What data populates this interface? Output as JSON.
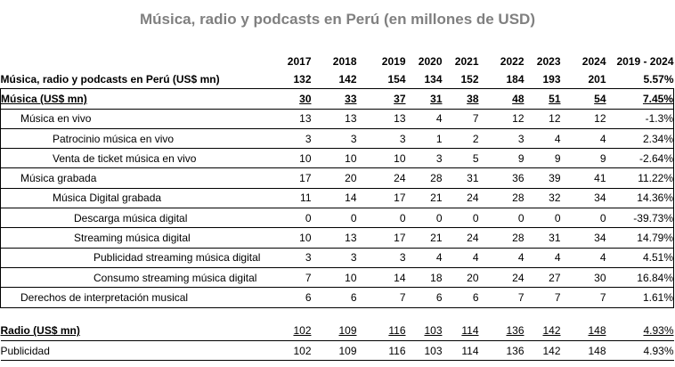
{
  "title": "Música, radio y podcasts en Perú (en millones de USD)",
  "years": [
    "2017",
    "2018",
    "2019",
    "2020",
    "2021",
    "2022",
    "2023",
    "2024",
    "2019 - 2024"
  ],
  "rows": [
    {
      "label": "Música, radio y podcasts en Perú (US$ mn)",
      "values": [
        "132",
        "142",
        "154",
        "134",
        "152",
        "184",
        "193",
        "201",
        "5.57%"
      ]
    },
    {
      "label": "Música (US$ mn)",
      "values": [
        "30",
        "33",
        "37",
        "31",
        "38",
        "48",
        "51",
        "54",
        "7.45%"
      ]
    },
    {
      "label": "Música en vivo",
      "values": [
        "13",
        "13",
        "13",
        "4",
        "7",
        "12",
        "12",
        "12",
        "-1.3%"
      ]
    },
    {
      "label": "Patrocinio música en vivo",
      "values": [
        "3",
        "3",
        "3",
        "1",
        "2",
        "3",
        "4",
        "4",
        "2.34%"
      ]
    },
    {
      "label": "Venta de ticket música en vivo",
      "values": [
        "10",
        "10",
        "10",
        "3",
        "5",
        "9",
        "9",
        "9",
        "-2.64%"
      ]
    },
    {
      "label": "Música grabada",
      "values": [
        "17",
        "20",
        "24",
        "28",
        "31",
        "36",
        "39",
        "41",
        "11.22%"
      ]
    },
    {
      "label": "Música Digital grabada",
      "values": [
        "11",
        "14",
        "17",
        "21",
        "24",
        "28",
        "32",
        "34",
        "14.36%"
      ]
    },
    {
      "label": "Descarga música digital",
      "values": [
        "0",
        "0",
        "0",
        "0",
        "0",
        "0",
        "0",
        "0",
        "-39.73%"
      ]
    },
    {
      "label": "Streaming música digital",
      "values": [
        "10",
        "13",
        "17",
        "21",
        "24",
        "28",
        "31",
        "34",
        "14.79%"
      ]
    },
    {
      "label": "Publicidad streaming música digital",
      "values": [
        "3",
        "3",
        "3",
        "4",
        "4",
        "4",
        "4",
        "4",
        "4.51%"
      ]
    },
    {
      "label": "Consumo streaming música digital",
      "values": [
        "7",
        "10",
        "14",
        "18",
        "20",
        "24",
        "27",
        "30",
        "16.84%"
      ]
    },
    {
      "label": "Derechos de interpretación musical",
      "values": [
        "6",
        "6",
        "7",
        "6",
        "6",
        "7",
        "7",
        "7",
        "1.61%"
      ]
    },
    {
      "label": "Radio (US$ mn)",
      "values": [
        "102",
        "109",
        "116",
        "103",
        "114",
        "136",
        "142",
        "148",
        "4.93%"
      ]
    },
    {
      "label": "Publicidad",
      "values": [
        "102",
        "109",
        "116",
        "103",
        "114",
        "136",
        "142",
        "148",
        "4.93%"
      ]
    }
  ]
}
